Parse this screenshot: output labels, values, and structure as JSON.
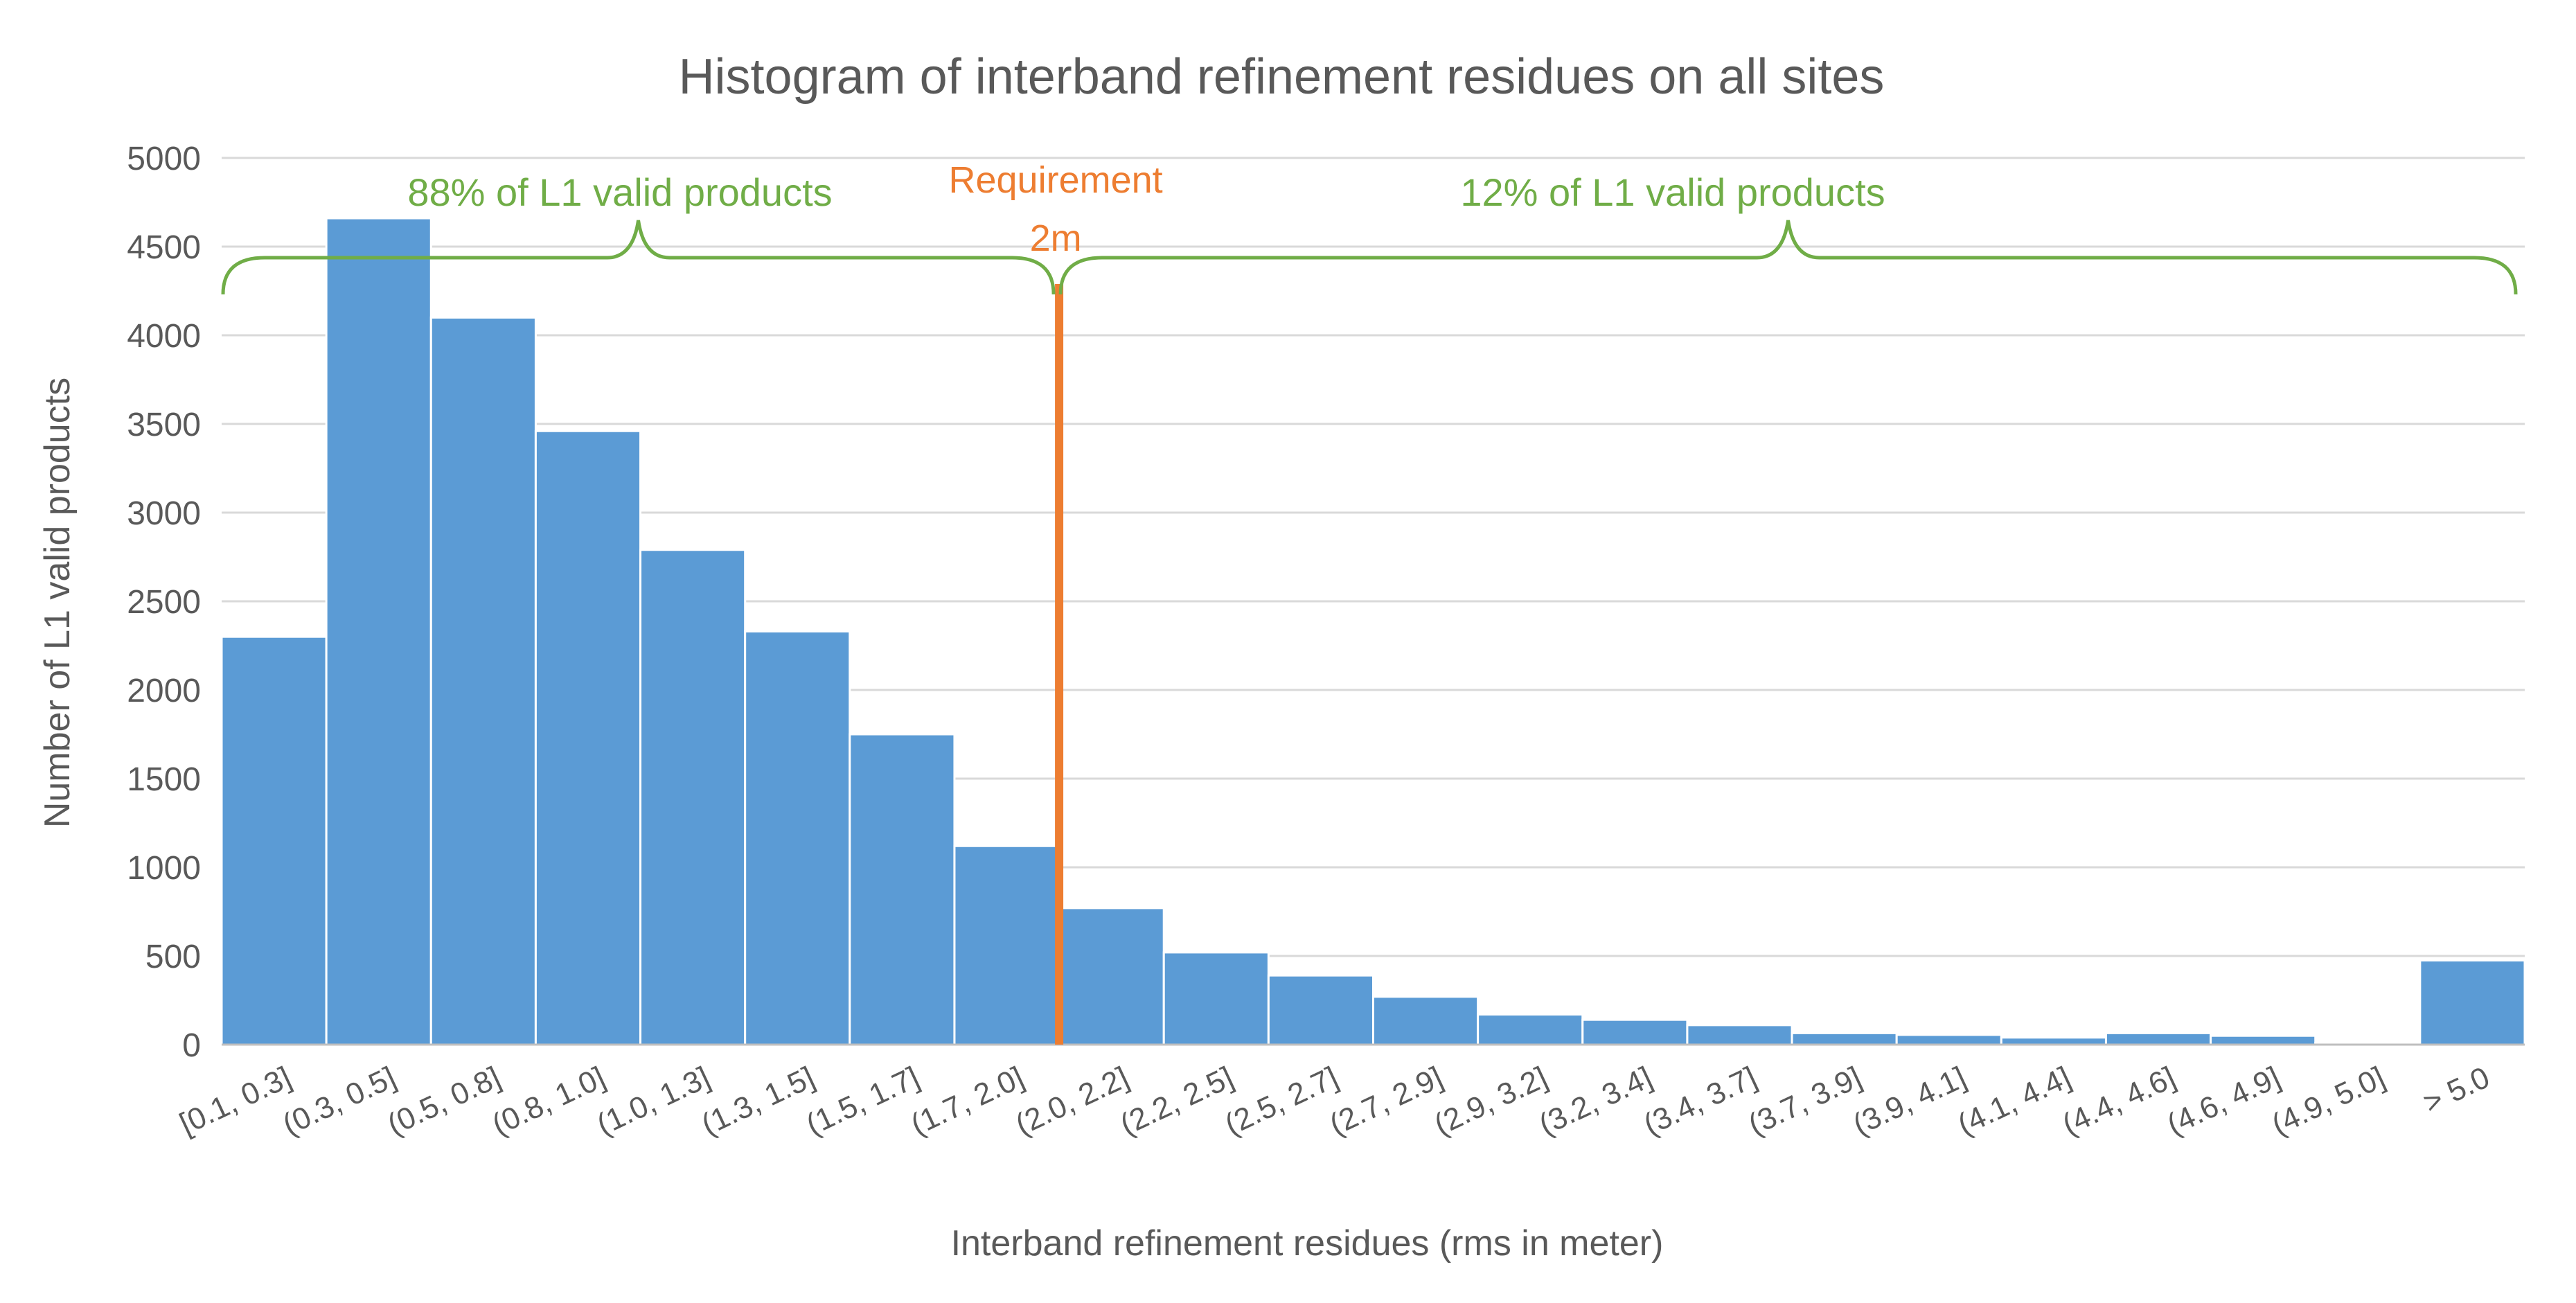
{
  "chart_data": {
    "type": "bar",
    "title": "Histogram of interband refinement residues on all sites",
    "xlabel": "Interband refinement residues (rms in meter)",
    "ylabel": "Number of L1 valid products",
    "ylim": [
      0,
      5000
    ],
    "yticks": [
      0,
      500,
      1000,
      1500,
      2000,
      2500,
      3000,
      3500,
      4000,
      4500,
      5000
    ],
    "grid": true,
    "categories": [
      "[0.1, 0.3]",
      "(0.3, 0.5]",
      "(0.5, 0.8]",
      "(0.8, 1.0]",
      "(1.0, 1.3]",
      "(1.3, 1.5]",
      "(1.5, 1.7]",
      "(1.7, 2.0]",
      "(2.0, 2.2]",
      "(2.2, 2.5]",
      "(2.5, 2.7]",
      "(2.7, 2.9]",
      "(2.9, 3.2]",
      "(3.2, 3.4]",
      "(3.4, 3.7]",
      "(3.7, 3.9]",
      "(3.9, 4.1]",
      "(4.1, 4.4]",
      "(4.4, 4.6]",
      "(4.6, 4.9]",
      "(4.9, 5.0]",
      "> 5.0"
    ],
    "values": [
      2300,
      4660,
      4100,
      3460,
      2790,
      2330,
      1750,
      1120,
      770,
      520,
      390,
      270,
      170,
      140,
      110,
      65,
      55,
      40,
      65,
      50,
      10,
      475
    ],
    "bar_color": "#5b9bd5",
    "grid_color": "#d9d9d9",
    "requirement": {
      "x_boundary_index": 8,
      "label_line1": "Requirement",
      "label_line2": "2m",
      "color": "#ed7d31"
    },
    "annotations": [
      {
        "text": "88% of L1 valid products",
        "color": "#70ad47",
        "from_index": 0,
        "to_index": 8
      },
      {
        "text": "12% of L1 valid products",
        "color": "#70ad47",
        "from_index": 8,
        "to_index": 22
      }
    ]
  }
}
